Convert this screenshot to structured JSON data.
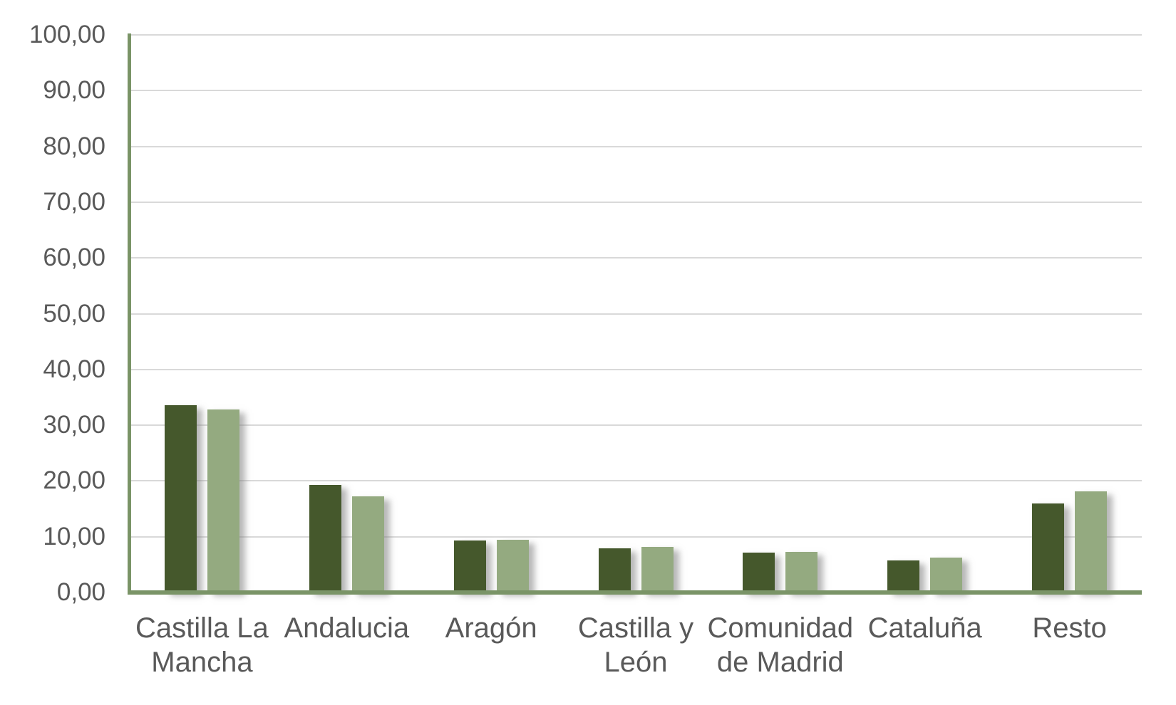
{
  "chart_data": {
    "type": "bar",
    "title": "",
    "xlabel": "",
    "ylabel": "",
    "categories": [
      "Castilla La Mancha",
      "Andalucia",
      "Aragón",
      "Castilla y León",
      "Comunidad de Madrid",
      "Cataluña",
      "Resto"
    ],
    "category_lines": [
      [
        "Castilla La",
        "Mancha"
      ],
      [
        "Andalucia"
      ],
      [
        "Aragón"
      ],
      [
        "Castilla y",
        "León"
      ],
      [
        "Comunidad",
        "de Madrid"
      ],
      [
        "Cataluña"
      ],
      [
        "Resto"
      ]
    ],
    "series": [
      {
        "name": "dark-green-series",
        "color": "#45582C",
        "values": [
          33.6,
          19.3,
          9.3,
          7.9,
          7.2,
          5.7,
          16.0
        ]
      },
      {
        "name": "light-green-series",
        "color": "#94AA80",
        "values": [
          32.8,
          17.2,
          9.5,
          8.2,
          7.3,
          6.2,
          18.1
        ]
      }
    ],
    "ylim": [
      0,
      100
    ],
    "ytick_step": 10,
    "ytick_labels": [
      "0,00",
      "10,00",
      "20,00",
      "30,00",
      "40,00",
      "50,00",
      "60,00",
      "70,00",
      "80,00",
      "90,00",
      "100,00"
    ],
    "grid": true,
    "legend_position": "none",
    "number_format": "comma-decimal"
  },
  "style": {
    "axis_color": "#7A9467",
    "gridline_color": "#D9D9D9",
    "text_color": "#595959",
    "background": "#FFFFFF",
    "bar_shadow": true
  }
}
